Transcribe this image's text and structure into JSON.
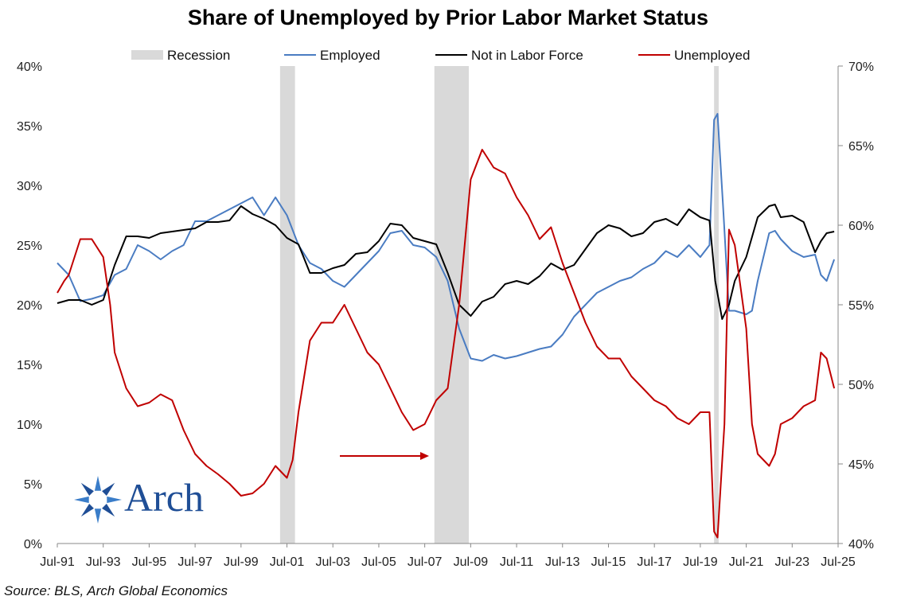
{
  "chart_data": {
    "type": "line",
    "title": "Share of Unemployed by Prior Labor Market Status",
    "source": "Source: BLS, Arch Global Economics",
    "logo_text": "Arch",
    "x_tick_labels": [
      "Jul-91",
      "Jul-93",
      "Jul-95",
      "Jul-97",
      "Jul-99",
      "Jul-01",
      "Jul-03",
      "Jul-05",
      "Jul-07",
      "Jul-09",
      "Jul-11",
      "Jul-13",
      "Jul-15",
      "Jul-17",
      "Jul-19",
      "Jul-21",
      "Jul-23",
      "Jul-25"
    ],
    "x_range": [
      1991.5,
      2025.5
    ],
    "left_axis": {
      "range": [
        0,
        40
      ],
      "ticks": [
        0,
        5,
        10,
        15,
        20,
        25,
        30,
        35,
        40
      ],
      "tick_labels": [
        "0%",
        "5%",
        "10%",
        "15%",
        "20%",
        "25%",
        "30%",
        "35%",
        "40%"
      ]
    },
    "right_axis": {
      "range": [
        40,
        70
      ],
      "ticks": [
        40,
        45,
        50,
        55,
        60,
        65,
        70
      ],
      "tick_labels": [
        "40%",
        "45%",
        "50%",
        "55%",
        "60%",
        "65%",
        "70%"
      ]
    },
    "legend": {
      "position": "top",
      "entries": [
        "Recession",
        "Employed",
        "Not in Labor Force",
        "Unemployed"
      ]
    },
    "recessions": [
      {
        "start": 2001.2,
        "end": 2001.85
      },
      {
        "start": 2007.92,
        "end": 2009.42
      },
      {
        "start": 2020.1,
        "end": 2020.3
      }
    ],
    "series": [
      {
        "name": "Employed",
        "axis": "left",
        "color": "#4a7cc2",
        "points": [
          [
            1991.5,
            23.5
          ],
          [
            1992,
            22.5
          ],
          [
            1992.5,
            20.3
          ],
          [
            1993,
            20.5
          ],
          [
            1993.5,
            20.8
          ],
          [
            1994,
            22.5
          ],
          [
            1994.5,
            23
          ],
          [
            1995,
            25
          ],
          [
            1995.5,
            24.5
          ],
          [
            1996,
            23.8
          ],
          [
            1996.5,
            24.5
          ],
          [
            1997,
            25
          ],
          [
            1997.5,
            27
          ],
          [
            1998,
            27
          ],
          [
            1998.5,
            27.5
          ],
          [
            1999,
            28
          ],
          [
            1999.5,
            28.5
          ],
          [
            2000,
            29
          ],
          [
            2000.5,
            27.5
          ],
          [
            2001,
            29
          ],
          [
            2001.5,
            27.5
          ],
          [
            2002,
            25
          ],
          [
            2002.5,
            23.5
          ],
          [
            2003,
            23
          ],
          [
            2003.5,
            22
          ],
          [
            2004,
            21.5
          ],
          [
            2004.5,
            22.5
          ],
          [
            2005,
            23.5
          ],
          [
            2005.5,
            24.5
          ],
          [
            2006,
            26
          ],
          [
            2006.5,
            26.2
          ],
          [
            2007,
            25
          ],
          [
            2007.5,
            24.8
          ],
          [
            2008,
            24
          ],
          [
            2008.5,
            22
          ],
          [
            2009,
            18
          ],
          [
            2009.5,
            15.5
          ],
          [
            2010,
            15.3
          ],
          [
            2010.5,
            15.8
          ],
          [
            2011,
            15.5
          ],
          [
            2011.5,
            15.7
          ],
          [
            2012,
            16
          ],
          [
            2012.5,
            16.3
          ],
          [
            2013,
            16.5
          ],
          [
            2013.5,
            17.5
          ],
          [
            2014,
            19
          ],
          [
            2014.5,
            20
          ],
          [
            2015,
            21
          ],
          [
            2015.5,
            21.5
          ],
          [
            2016,
            22
          ],
          [
            2016.5,
            22.3
          ],
          [
            2017,
            23
          ],
          [
            2017.5,
            23.5
          ],
          [
            2018,
            24.5
          ],
          [
            2018.5,
            24
          ],
          [
            2019,
            25
          ],
          [
            2019.5,
            24
          ],
          [
            2019.9,
            25
          ],
          [
            2020.1,
            35.5
          ],
          [
            2020.25,
            36
          ],
          [
            2020.5,
            28
          ],
          [
            2020.75,
            19.5
          ],
          [
            2021,
            19.5
          ],
          [
            2021.5,
            19.2
          ],
          [
            2021.75,
            19.5
          ],
          [
            2022,
            22
          ],
          [
            2022.5,
            26
          ],
          [
            2022.75,
            26.2
          ],
          [
            2023,
            25.5
          ],
          [
            2023.5,
            24.5
          ],
          [
            2024,
            24
          ],
          [
            2024.5,
            24.2
          ],
          [
            2024.75,
            22.5
          ],
          [
            2025,
            22
          ],
          [
            2025.33,
            23.8
          ]
        ]
      },
      {
        "name": "Not in Labor Force",
        "axis": "right",
        "color": "#000000",
        "points": [
          [
            1991.5,
            55.1
          ],
          [
            1992,
            55.3
          ],
          [
            1992.5,
            55.3
          ],
          [
            1993,
            55
          ],
          [
            1993.5,
            55.3
          ],
          [
            1994,
            57.5
          ],
          [
            1994.5,
            59.3
          ],
          [
            1995,
            59.3
          ],
          [
            1995.5,
            59.2
          ],
          [
            1996,
            59.5
          ],
          [
            1996.5,
            59.6
          ],
          [
            1997,
            59.7
          ],
          [
            1997.5,
            59.8
          ],
          [
            1998,
            60.2
          ],
          [
            1998.5,
            60.2
          ],
          [
            1999,
            60.3
          ],
          [
            1999.5,
            61.2
          ],
          [
            2000,
            60.7
          ],
          [
            2000.5,
            60.4
          ],
          [
            2001,
            60
          ],
          [
            2001.5,
            59.2
          ],
          [
            2002,
            58.8
          ],
          [
            2002.5,
            57
          ],
          [
            2003,
            57
          ],
          [
            2003.5,
            57.3
          ],
          [
            2004,
            57.5
          ],
          [
            2004.5,
            58.2
          ],
          [
            2005,
            58.3
          ],
          [
            2005.5,
            59
          ],
          [
            2006,
            60.1
          ],
          [
            2006.5,
            60
          ],
          [
            2007,
            59.2
          ],
          [
            2007.5,
            59
          ],
          [
            2008,
            58.8
          ],
          [
            2008.5,
            57
          ],
          [
            2009,
            55
          ],
          [
            2009.5,
            54.3
          ],
          [
            2010,
            55.2
          ],
          [
            2010.5,
            55.5
          ],
          [
            2011,
            56.3
          ],
          [
            2011.5,
            56.5
          ],
          [
            2012,
            56.3
          ],
          [
            2012.5,
            56.8
          ],
          [
            2013,
            57.6
          ],
          [
            2013.5,
            57.2
          ],
          [
            2014,
            57.5
          ],
          [
            2014.5,
            58.5
          ],
          [
            2015,
            59.5
          ],
          [
            2015.5,
            60
          ],
          [
            2016,
            59.8
          ],
          [
            2016.5,
            59.3
          ],
          [
            2017,
            59.5
          ],
          [
            2017.5,
            60.2
          ],
          [
            2018,
            60.4
          ],
          [
            2018.5,
            60
          ],
          [
            2019,
            61
          ],
          [
            2019.5,
            60.5
          ],
          [
            2019.9,
            60.3
          ],
          [
            2020.15,
            56.5
          ],
          [
            2020.45,
            54.1
          ],
          [
            2020.75,
            55
          ],
          [
            2021,
            56.5
          ],
          [
            2021.5,
            58
          ],
          [
            2022,
            60.5
          ],
          [
            2022.5,
            61.2
          ],
          [
            2022.75,
            61.3
          ],
          [
            2023,
            60.5
          ],
          [
            2023.5,
            60.6
          ],
          [
            2024,
            60.2
          ],
          [
            2024.5,
            58.3
          ],
          [
            2024.75,
            59
          ],
          [
            2025,
            59.5
          ],
          [
            2025.33,
            59.6
          ]
        ]
      },
      {
        "name": "Unemployed",
        "axis": "left",
        "color": "#c00000",
        "points": [
          [
            1991.5,
            21
          ],
          [
            1991.8,
            22
          ],
          [
            1992,
            22.5
          ],
          [
            1992.5,
            25.5
          ],
          [
            1993,
            25.5
          ],
          [
            1993.5,
            24
          ],
          [
            1993.8,
            20
          ],
          [
            1994,
            16
          ],
          [
            1994.5,
            13
          ],
          [
            1995,
            11.5
          ],
          [
            1995.5,
            11.8
          ],
          [
            1996,
            12.5
          ],
          [
            1996.5,
            12
          ],
          [
            1997,
            9.5
          ],
          [
            1997.5,
            7.5
          ],
          [
            1998,
            6.5
          ],
          [
            1998.5,
            5.8
          ],
          [
            1999,
            5
          ],
          [
            1999.5,
            4
          ],
          [
            2000,
            4.2
          ],
          [
            2000.5,
            5
          ],
          [
            2001,
            6.5
          ],
          [
            2001.5,
            5.5
          ],
          [
            2001.75,
            7
          ],
          [
            2002,
            11
          ],
          [
            2002.5,
            17
          ],
          [
            2003,
            18.5
          ],
          [
            2003.5,
            18.5
          ],
          [
            2004,
            20
          ],
          [
            2004.5,
            18
          ],
          [
            2005,
            16
          ],
          [
            2005.5,
            15
          ],
          [
            2006,
            13
          ],
          [
            2006.5,
            11
          ],
          [
            2007,
            9.5
          ],
          [
            2007.5,
            10
          ],
          [
            2008,
            12
          ],
          [
            2008.5,
            13
          ],
          [
            2009,
            20
          ],
          [
            2009.5,
            30.5
          ],
          [
            2010,
            33
          ],
          [
            2010.5,
            31.5
          ],
          [
            2011,
            31
          ],
          [
            2011.5,
            29
          ],
          [
            2012,
            27.5
          ],
          [
            2012.5,
            25.5
          ],
          [
            2013,
            26.5
          ],
          [
            2013.5,
            23.5
          ],
          [
            2014,
            21
          ],
          [
            2014.5,
            18.5
          ],
          [
            2015,
            16.5
          ],
          [
            2015.5,
            15.5
          ],
          [
            2016,
            15.5
          ],
          [
            2016.5,
            14
          ],
          [
            2017,
            13
          ],
          [
            2017.5,
            12
          ],
          [
            2018,
            11.5
          ],
          [
            2018.5,
            10.5
          ],
          [
            2019,
            10
          ],
          [
            2019.5,
            11
          ],
          [
            2019.9,
            11
          ],
          [
            2020.1,
            1
          ],
          [
            2020.25,
            0.5
          ],
          [
            2020.55,
            10
          ],
          [
            2020.75,
            26.3
          ],
          [
            2021,
            25
          ],
          [
            2021.5,
            18
          ],
          [
            2021.75,
            10
          ],
          [
            2022,
            7.5
          ],
          [
            2022.5,
            6.5
          ],
          [
            2022.75,
            7.5
          ],
          [
            2023,
            10
          ],
          [
            2023.5,
            10.5
          ],
          [
            2024,
            11.5
          ],
          [
            2024.5,
            12
          ],
          [
            2024.75,
            16
          ],
          [
            2025,
            15.5
          ],
          [
            2025.33,
            13
          ]
        ]
      }
    ]
  }
}
